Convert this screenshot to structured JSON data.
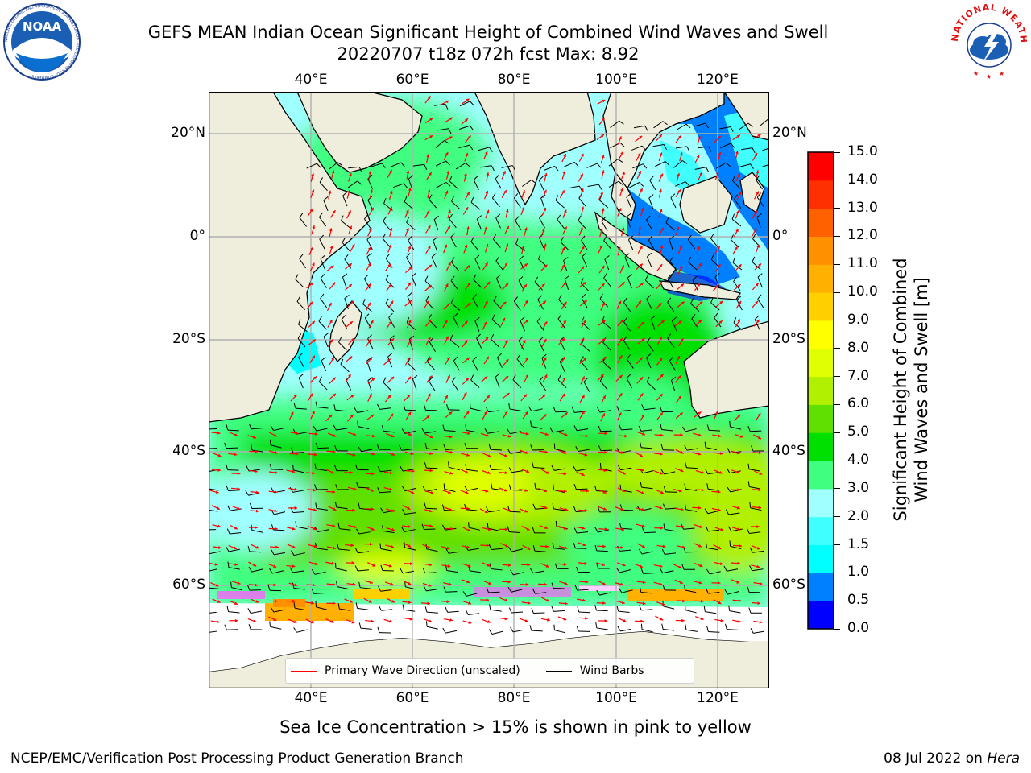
{
  "title": {
    "line1": "GEFS MEAN Indian Ocean Significant Height of Combined Wind Waves and Swell",
    "line2": "20220707 t18z 072h fcst   Max: 8.92"
  },
  "logos": {
    "noaa_text": "NOAA",
    "noaa_ring": "NATIONAL OCEANIC AND ATMOSPHERIC ADMINISTRATION · U.S. DEPARTMENT OF COMMERCE",
    "nws_ring": "NATIONAL WEATHER SERVICE"
  },
  "map": {
    "lon_ticks": [
      "40°E",
      "60°E",
      "80°E",
      "100°E",
      "120°E"
    ],
    "lat_ticks": [
      "20°N",
      "0°",
      "20°S",
      "40°S",
      "60°S"
    ],
    "land_color": "#efeddc",
    "grid_color": "#b0b0b0"
  },
  "legend": {
    "wave_label": "Primary Wave Direction (unscaled)",
    "wind_label": "Wind Barbs",
    "wave_color": "#ff0000",
    "wind_color": "#000000"
  },
  "colorbar": {
    "title_line1": "Significant Height of Combined",
    "title_line2": "Wind Waves and Swell [m]",
    "ticks": [
      "0.0",
      "0.5",
      "1.0",
      "1.5",
      "2.0",
      "3.0",
      "4.0",
      "5.0",
      "6.0",
      "7.0",
      "8.0",
      "9.0",
      "10.0",
      "11.0",
      "12.0",
      "13.0",
      "14.0",
      "15.0"
    ],
    "colors": [
      "#0000ff",
      "#0080ff",
      "#00ffff",
      "#40ffff",
      "#a0ffff",
      "#40ff80",
      "#00e000",
      "#60e000",
      "#b0f000",
      "#e0ff00",
      "#ffff00",
      "#ffd000",
      "#ffb000",
      "#ff9000",
      "#ff6000",
      "#ff3000",
      "#ff0000"
    ]
  },
  "caption": "Sea Ice Concentration > 15% is shown in pink to yellow",
  "footer": {
    "left": "NCEP/EMC/Verification Post Processing Product Generation Branch",
    "right_date": "08 Jul 2022 on ",
    "right_host": "Hera"
  }
}
